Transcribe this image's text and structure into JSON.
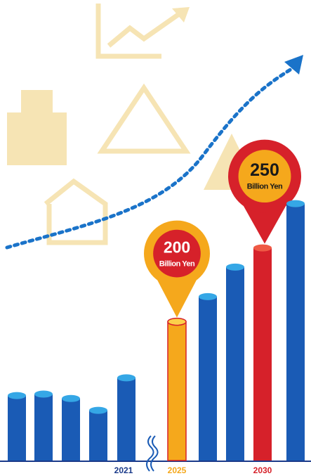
{
  "chart_data": {
    "type": "bar",
    "categories": [
      null,
      null,
      null,
      null,
      "2021",
      "2025",
      null,
      null,
      "2030",
      null
    ],
    "values": [
      150,
      151,
      148,
      140,
      162,
      200,
      217,
      237,
      250,
      280
    ],
    "colors": [
      "#1a5bb5",
      "#1a5bb5",
      "#1a5bb5",
      "#1a5bb5",
      "#1a5bb5",
      "#f5a81c",
      "#1a5bb5",
      "#1a5bb5",
      "#d6212a",
      "#1a5bb5"
    ],
    "value_labels": [
      null,
      null,
      null,
      null,
      null,
      "200",
      null,
      null,
      "250",
      null
    ],
    "value_unit": "Billion Yen",
    "ylim": [
      106,
      300
    ]
  }
}
